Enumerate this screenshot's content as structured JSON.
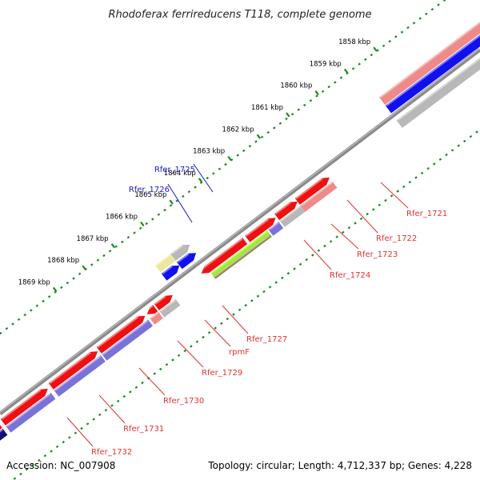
{
  "title": "Rhodoferax ferrireducens T118, complete genome",
  "footer": {
    "accession": "Accession: NC_007908",
    "summary": "Topology: circular; Length: 4,712,337 bp; Genes: 4,228"
  },
  "ticks": [
    "1858 kbp",
    "1859 kbp",
    "1860 kbp",
    "1861 kbp",
    "1862 kbp",
    "1863 kbp",
    "1864 kbp",
    "1865 kbp",
    "1866 kbp",
    "1867 kbp",
    "1868 kbp",
    "1869 kbp"
  ],
  "genes": [
    {
      "name": "Rfer_1721",
      "color": "#e33030"
    },
    {
      "name": "Rfer_1722",
      "color": "#e33030"
    },
    {
      "name": "Rfer_1723",
      "color": "#e33030"
    },
    {
      "name": "Rfer_1724",
      "color": "#e33030"
    },
    {
      "name": "Rfer_1725",
      "color": "#1a1acc"
    },
    {
      "name": "Rfer_1726",
      "color": "#1a1acc"
    },
    {
      "name": "Rfer_1727",
      "color": "#e33030"
    },
    {
      "name": "rpmF",
      "color": "#e33030"
    },
    {
      "name": "Rfer_1729",
      "color": "#e33030"
    },
    {
      "name": "Rfer_1730",
      "color": "#e33030"
    },
    {
      "name": "Rfer_1731",
      "color": "#e33030"
    },
    {
      "name": "Rfer_1732",
      "color": "#e33030"
    }
  ],
  "colors": {
    "red": "#ee1111",
    "pink": "#ee8a8a",
    "blue": "#1111ee",
    "navy": "#11117a",
    "purple": "#7a72d8",
    "gray": "#b8b8b8",
    "yellow": "#ece8a0",
    "lime": "#9cee2a",
    "olive": "#8e8a48",
    "backbone": "#8a8a8a",
    "ticks": "#1b8a1b"
  }
}
